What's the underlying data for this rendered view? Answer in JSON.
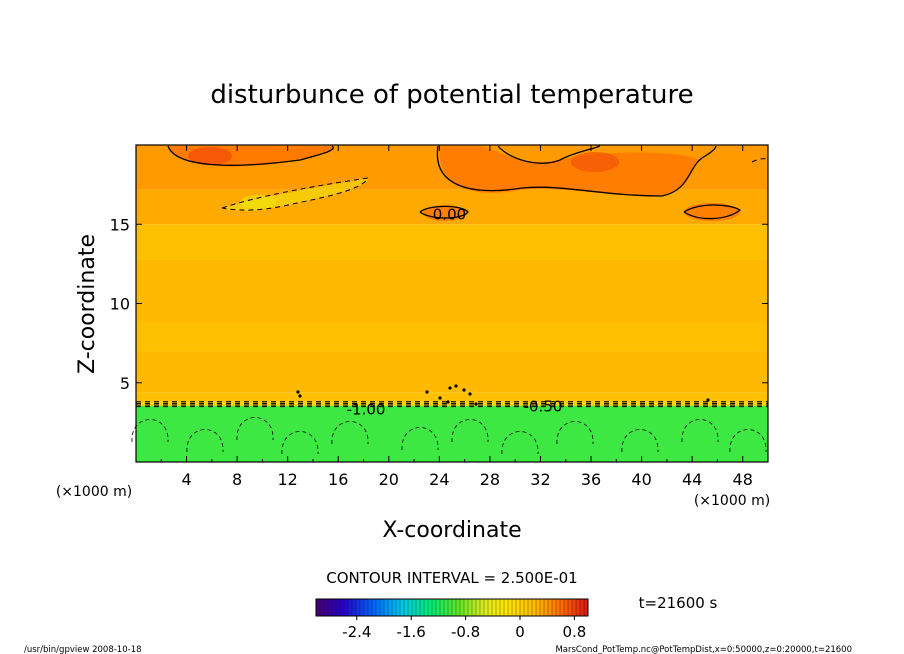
{
  "chart_data": {
    "type": "heatmap",
    "title": "disturbunce of potential temperature",
    "xlabel": "X-coordinate",
    "ylabel": "Z-coordinate",
    "x_unit_left": "(×1000 m)",
    "x_unit_right": "(×1000 m)",
    "xlim": [
      0,
      50
    ],
    "ylim": [
      0,
      20
    ],
    "x_ticks": [
      4,
      8,
      12,
      16,
      20,
      24,
      28,
      32,
      36,
      40,
      44,
      48
    ],
    "y_ticks": [
      5,
      10,
      15
    ],
    "bands": [
      {
        "z0": 0,
        "z1": 3.8,
        "value": -1.05
      },
      {
        "z0": 3.8,
        "z1": 4.4,
        "value": 0.18
      },
      {
        "z0": 4.4,
        "z1": 7.0,
        "value": 0.22
      },
      {
        "z0": 7.0,
        "z1": 8.8,
        "value": 0.18
      },
      {
        "z0": 8.8,
        "z1": 12.8,
        "value": 0.22
      },
      {
        "z0": 12.8,
        "z1": 15.0,
        "value": 0.18
      },
      {
        "z0": 15.0,
        "z1": 17.2,
        "value": 0.3
      },
      {
        "z0": 17.2,
        "z1": 20.0,
        "value": 0.38
      }
    ],
    "contour_labels": [
      {
        "text": "0.00",
        "x": 24.8,
        "z": 15.6
      },
      {
        "text": "-1.00",
        "x": 18.2,
        "z": 3.3
      },
      {
        "text": "-0.50",
        "x": 32.2,
        "z": 3.5
      }
    ],
    "contour_interval_label": "CONTOUR INTERVAL = 2.500E-01",
    "time_label": "t=21600 s",
    "colorbar": {
      "min": -3.0,
      "max": 1.0,
      "tick_labels": [
        "-2.4",
        "-1.6",
        "-0.8",
        "0",
        "0.8"
      ],
      "tick_values": [
        -2.4,
        -1.6,
        -0.8,
        0,
        0.8
      ]
    }
  },
  "footer": {
    "left": "/usr/bin/gpview   2008-10-18",
    "right": "MarsCond_PotTemp.nc@PotTempDist,x=0:50000,z=0:20000,t=21600"
  }
}
